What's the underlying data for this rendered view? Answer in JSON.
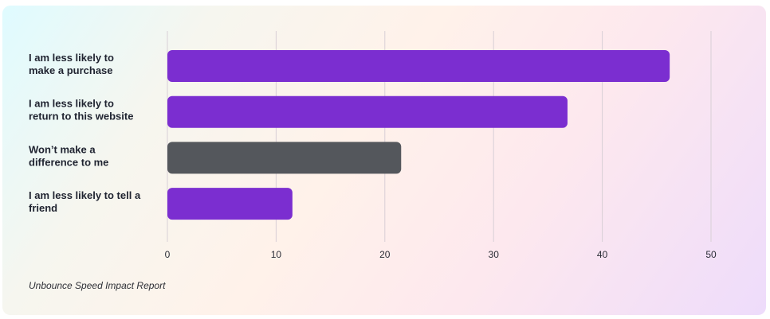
{
  "chart_data": {
    "type": "bar",
    "orientation": "horizontal",
    "categories": [
      [
        "I am less likely to",
        "make a purchase"
      ],
      [
        "I am less likely to",
        "return to this website"
      ],
      [
        "Won’t make a",
        "difference to me"
      ],
      [
        "I am less likely to tell a",
        "friend"
      ]
    ],
    "values": [
      46.2,
      36.8,
      21.5,
      11.5
    ],
    "bar_colors": [
      "#7b2ed0",
      "#7b2ed0",
      "#54575c",
      "#7b2ed0"
    ],
    "xticks": [
      0,
      10,
      20,
      30,
      40,
      50
    ],
    "xlim": [
      0,
      50
    ],
    "grid": true,
    "title": "",
    "xlabel": "",
    "ylabel": ""
  },
  "source": "Unbounce Speed Impact Report"
}
